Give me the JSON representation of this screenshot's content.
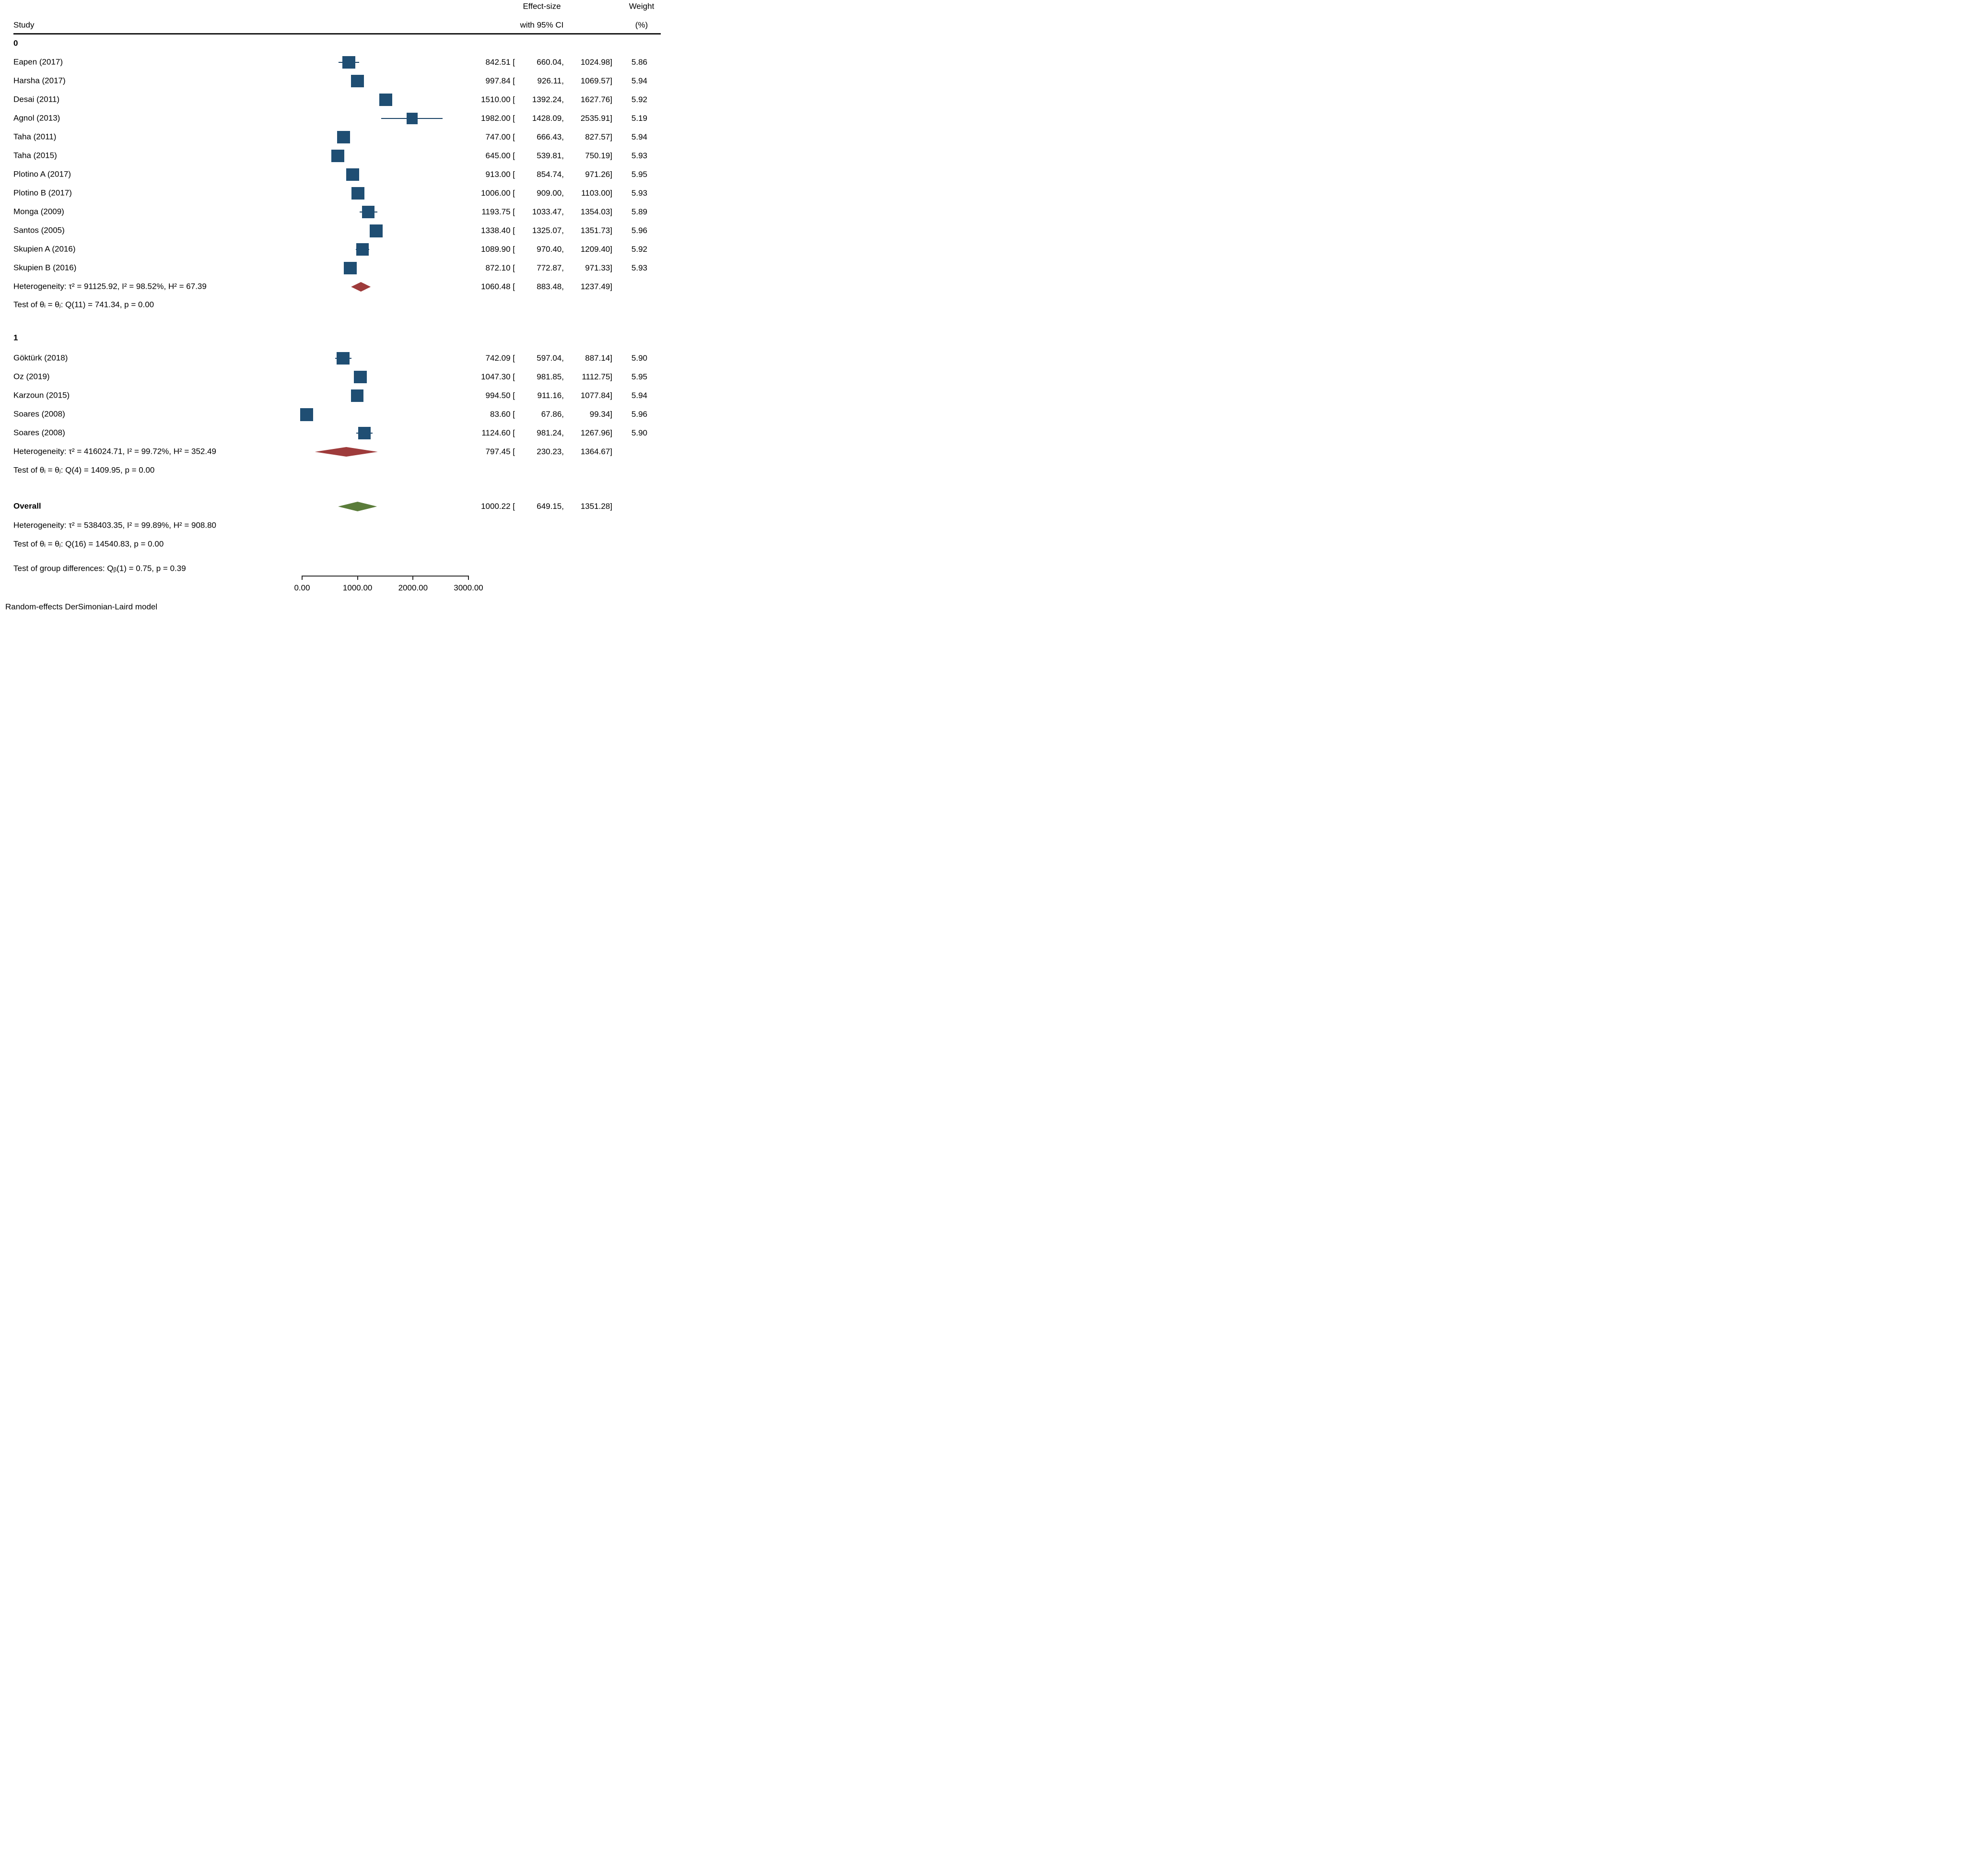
{
  "header": {
    "study": "Study",
    "effect_line1": "Effect-size",
    "effect_line2": "with 95% CI",
    "weight_line1": "Weight",
    "weight_line2": "(%)"
  },
  "chart_data": {
    "type": "forest",
    "xlabel": "",
    "x_axis": {
      "min": 0,
      "max": 3000,
      "ticks": [
        0,
        1000,
        2000,
        3000
      ],
      "tick_labels": [
        "0.00",
        "1000.00",
        "2000.00",
        "3000.00"
      ]
    },
    "colors": {
      "marker": "#1f4e73",
      "whisker": "#1c4466",
      "group_diamond": "#9e3b3b",
      "overall_diamond": "#5a7c3a",
      "axis": "#2b2b2b"
    },
    "groups": [
      {
        "label": "0",
        "studies": [
          {
            "label": "Eapen (2017)",
            "est": 842.51,
            "lo": 660.04,
            "hi": 1024.98,
            "weight": 5.86
          },
          {
            "label": "Harsha (2017)",
            "est": 997.84,
            "lo": 926.11,
            "hi": 1069.57,
            "weight": 5.94
          },
          {
            "label": "Desai (2011)",
            "est": 1510.0,
            "lo": 1392.24,
            "hi": 1627.76,
            "weight": 5.92
          },
          {
            "label": "Agnol (2013)",
            "est": 1982.0,
            "lo": 1428.09,
            "hi": 2535.91,
            "weight": 5.19
          },
          {
            "label": "Taha (2011)",
            "est": 747.0,
            "lo": 666.43,
            "hi": 827.57,
            "weight": 5.94
          },
          {
            "label": "Taha (2015)",
            "est": 645.0,
            "lo": 539.81,
            "hi": 750.19,
            "weight": 5.93
          },
          {
            "label": "Plotino A (2017)",
            "est": 913.0,
            "lo": 854.74,
            "hi": 971.26,
            "weight": 5.95
          },
          {
            "label": "Plotino B (2017)",
            "est": 1006.0,
            "lo": 909.0,
            "hi": 1103.0,
            "weight": 5.93
          },
          {
            "label": "Monga (2009)",
            "est": 1193.75,
            "lo": 1033.47,
            "hi": 1354.03,
            "weight": 5.89
          },
          {
            "label": "Santos (2005)",
            "est": 1338.4,
            "lo": 1325.07,
            "hi": 1351.73,
            "weight": 5.96
          },
          {
            "label": "Skupien A (2016)",
            "est": 1089.9,
            "lo": 970.4,
            "hi": 1209.4,
            "weight": 5.92
          },
          {
            "label": "Skupien B (2016)",
            "est": 872.1,
            "lo": 772.87,
            "hi": 971.33,
            "weight": 5.93
          }
        ],
        "pooled": {
          "est": 1060.48,
          "lo": 883.48,
          "hi": 1237.49
        },
        "heterogeneity": "Heterogeneity: τ² = 91125.92, I² = 98.52%, H² = 67.39",
        "test": "Test of θᵢ = θⱼ: Q(11) = 741.34, p = 0.00"
      },
      {
        "label": "1",
        "studies": [
          {
            "label": "Göktürk (2018)",
            "est": 742.09,
            "lo": 597.04,
            "hi": 887.14,
            "weight": 5.9
          },
          {
            "label": "Oz (2019)",
            "est": 1047.3,
            "lo": 981.85,
            "hi": 1112.75,
            "weight": 5.95
          },
          {
            "label": "Karzoun (2015)",
            "est": 994.5,
            "lo": 911.16,
            "hi": 1077.84,
            "weight": 5.94
          },
          {
            "label": "Soares (2008)",
            "est": 83.6,
            "lo": 67.86,
            "hi": 99.34,
            "weight": 5.96
          },
          {
            "label": "Soares (2008)",
            "est": 1124.6,
            "lo": 981.24,
            "hi": 1267.96,
            "weight": 5.9
          }
        ],
        "pooled": {
          "est": 797.45,
          "lo": 230.23,
          "hi": 1364.67
        },
        "heterogeneity": "Heterogeneity: τ² = 416024.71, I² = 99.72%, H² = 352.49",
        "test": "Test of θᵢ = θⱼ: Q(4) = 1409.95, p = 0.00"
      }
    ],
    "overall": {
      "label": "Overall",
      "pooled": {
        "est": 1000.22,
        "lo": 649.15,
        "hi": 1351.28
      },
      "heterogeneity": "Heterogeneity: τ² = 538403.35, I² = 99.89%, H² = 908.80",
      "test": "Test of θᵢ = θⱼ: Q(16) = 14540.83, p = 0.00"
    },
    "group_difference": "Test of group differences: Qᵦ(1) = 0.75, p = 0.39",
    "footnote": "Random-effects DerSimonian-Laird model"
  }
}
